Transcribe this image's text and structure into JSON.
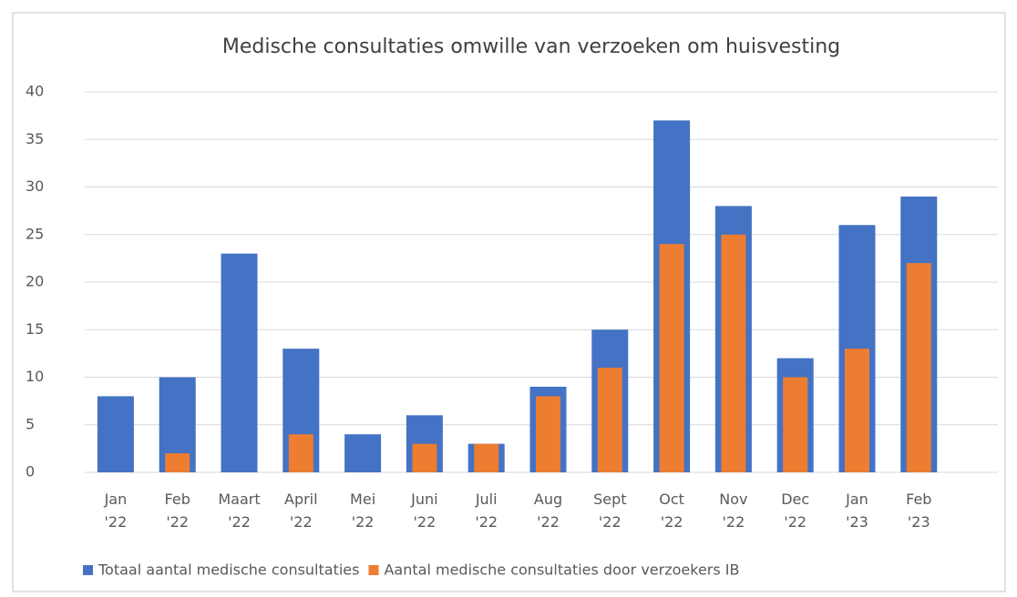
{
  "chart_data": {
    "type": "bar",
    "title": "Medische consultaties omwille van verzoeken om huisvesting",
    "categories": [
      "Jan\n'22",
      "Feb\n'22",
      "Maart\n'22",
      "April\n'22",
      "Mei\n'22",
      "Juni\n'22",
      "Juli\n'22",
      "Aug\n'22",
      "Sept\n'22",
      "Oct\n'22",
      "Nov\n'22",
      "Dec\n'22",
      "Jan\n'23",
      "Feb\n'23"
    ],
    "series": [
      {
        "name": "Totaal aantal medische consultaties",
        "color": "#4472C4",
        "values": [
          8,
          10,
          23,
          13,
          4,
          6,
          3,
          9,
          15,
          37,
          28,
          12,
          26,
          29
        ]
      },
      {
        "name": "Aantal medische consultaties door verzoekers IB",
        "color": "#ED7D31",
        "values": [
          null,
          2,
          null,
          4,
          null,
          3,
          3,
          8,
          11,
          24,
          25,
          10,
          13,
          22
        ]
      }
    ],
    "ylim": [
      0,
      40
    ],
    "yticks": [
      0,
      5,
      10,
      15,
      20,
      25,
      30,
      35,
      40
    ],
    "grid": true,
    "legend": "bottom"
  }
}
